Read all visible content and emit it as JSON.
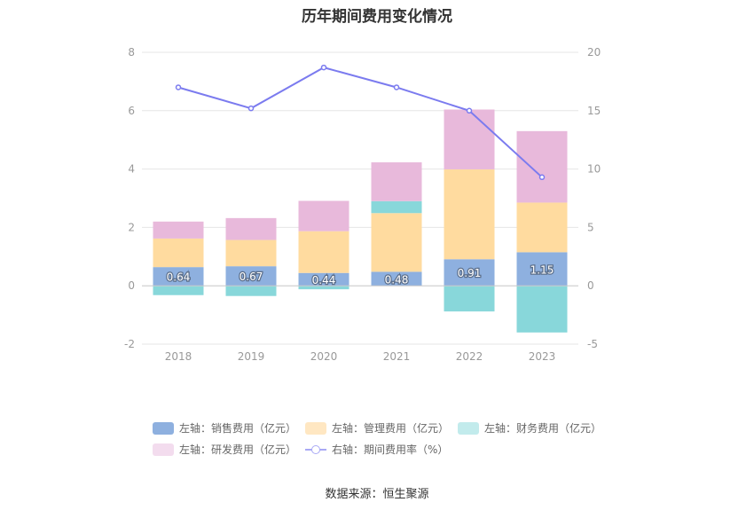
{
  "chart_data": {
    "type": "bar",
    "title": "历年期间费用变化情况",
    "categories": [
      "2018",
      "2019",
      "2020",
      "2021",
      "2022",
      "2023"
    ],
    "left_axis": {
      "ylim": [
        -2,
        8
      ],
      "ticks": [
        "-2",
        "0",
        "2",
        "4",
        "6",
        "8"
      ]
    },
    "right_axis": {
      "ylim": [
        -5,
        20
      ],
      "ticks": [
        "-5",
        "0",
        "5",
        "10",
        "15",
        "20"
      ]
    },
    "series": [
      {
        "name": "左轴：销售费用（亿元）",
        "type": "bar",
        "axis": "left",
        "color": "#8eb0df",
        "values": [
          0.64,
          0.67,
          0.44,
          0.48,
          0.91,
          1.15
        ],
        "labels": [
          "0.64",
          "0.67",
          "0.44",
          "0.48",
          "0.91",
          "1.15"
        ]
      },
      {
        "name": "左轴：管理费用（亿元）",
        "type": "bar",
        "axis": "left",
        "color": "#ffdb9f",
        "values": [
          0.98,
          0.9,
          1.43,
          2.01,
          3.08,
          1.7
        ]
      },
      {
        "name": "左轴：财务费用（亿元）",
        "type": "bar",
        "axis": "left",
        "color": "#88d7da",
        "values": [
          -0.32,
          -0.35,
          -0.12,
          0.41,
          -0.88,
          -1.6
        ]
      },
      {
        "name": "左轴：研发费用（亿元）",
        "type": "bar",
        "axis": "left",
        "color": "#e8b9db",
        "values": [
          0.58,
          0.75,
          1.04,
          1.33,
          2.05,
          2.45
        ]
      },
      {
        "name": "右轴：期间费用率（%）",
        "type": "line",
        "axis": "right",
        "color": "#7b7bef",
        "values": [
          17.0,
          15.2,
          18.7,
          17.0,
          15.0,
          9.3
        ]
      }
    ],
    "legend_position": "bottom",
    "grid": true
  },
  "source": "数据来源：恒生聚源"
}
